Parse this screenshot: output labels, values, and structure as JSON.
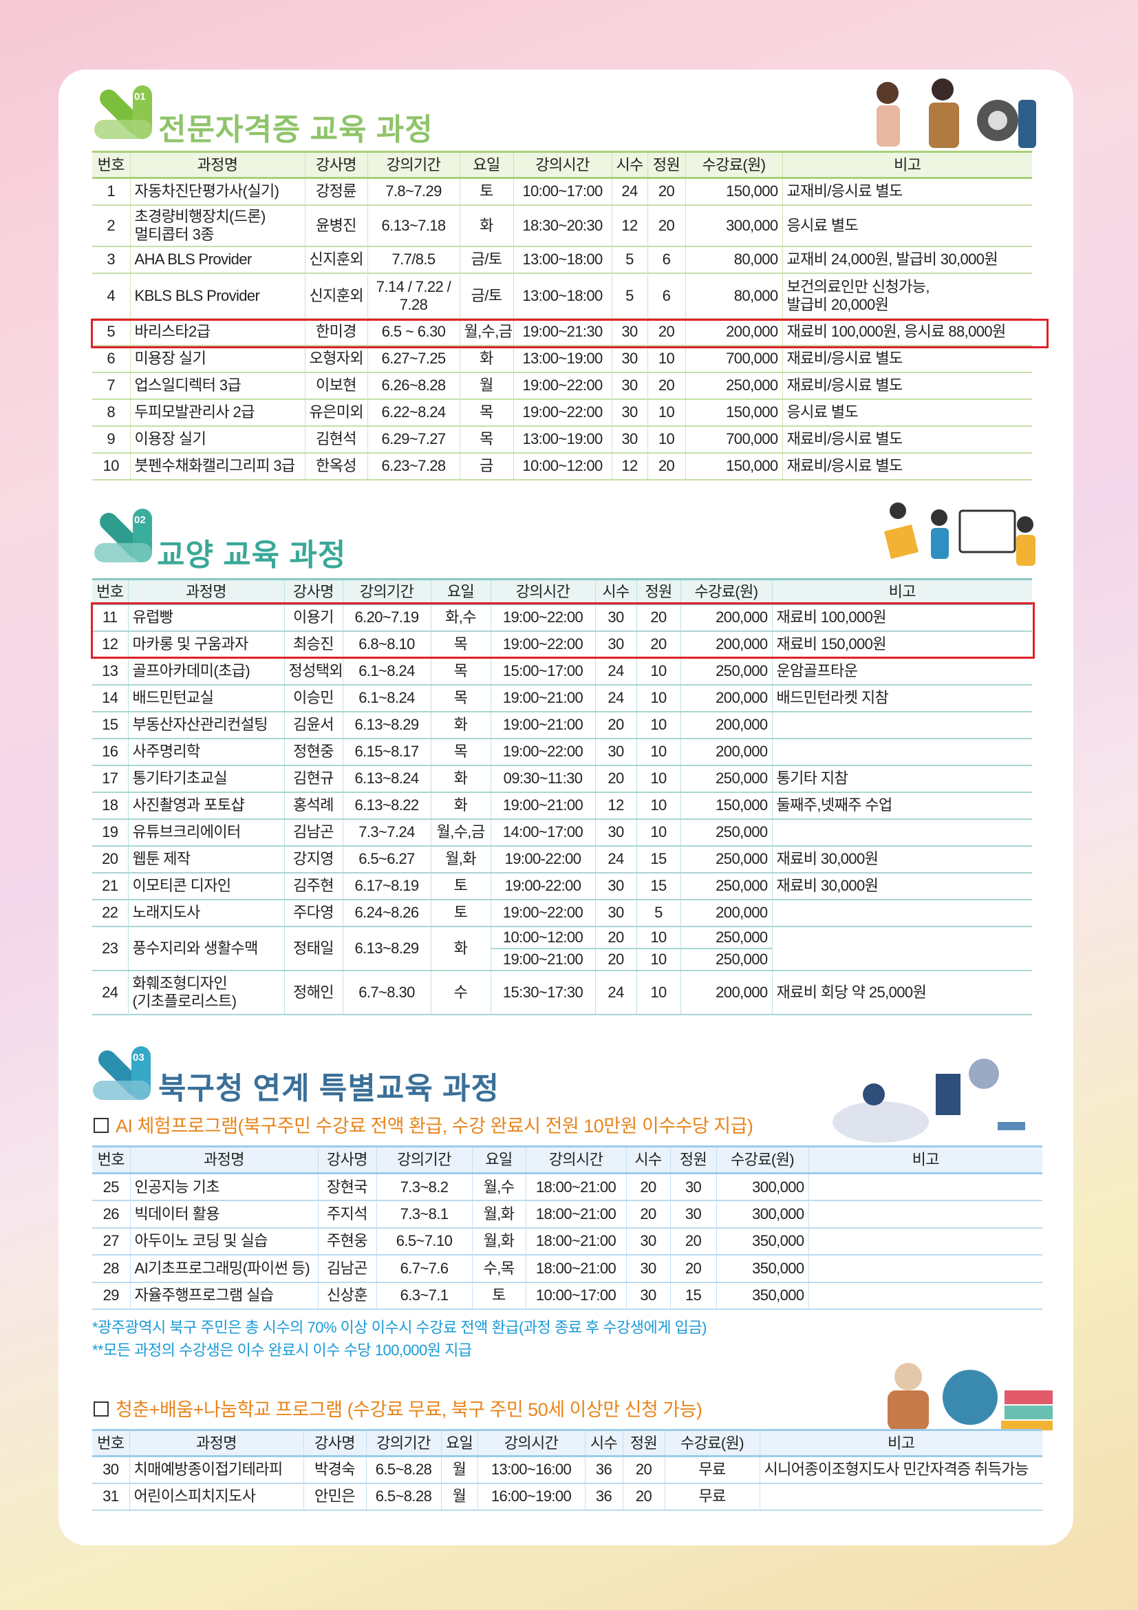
{
  "colors": {
    "sec1": "#8fc46a",
    "sec2": "#3aa898",
    "sec3": "#3a6f98",
    "sub_title": "#e8841a",
    "note": "#1a9ad6",
    "highlight": "#e0202a"
  },
  "headers": [
    "번호",
    "과정명",
    "강사명",
    "강의기간",
    "요일",
    "강의시간",
    "시수",
    "정원",
    "수강료(원)",
    "비고"
  ],
  "section1": {
    "num": "01",
    "title": "전문자격증 교육 과정",
    "rows": [
      [
        "1",
        "자동차진단평가사(실기)",
        "강정륜",
        "7.8~7.29",
        "토",
        "10:00~17:00",
        "24",
        "20",
        "150,000",
        "교재비/응시료 별도"
      ],
      [
        "2",
        "초경량비행장치(드론)\n멀티콥터 3종",
        "윤병진",
        "6.13~7.18",
        "화",
        "18:30~20:30",
        "12",
        "20",
        "300,000",
        "응시료 별도"
      ],
      [
        "3",
        "AHA BLS Provider",
        "신지훈외",
        "7.7/8.5",
        "금/토",
        "13:00~18:00",
        "5",
        "6",
        "80,000",
        "교재비 24,000원, 발급비 30,000원"
      ],
      [
        "4",
        "KBLS BLS Provider",
        "신지훈외",
        "7.14 / 7.22 /\n7.28",
        "금/토",
        "13:00~18:00",
        "5",
        "6",
        "80,000",
        "보건의료인만 신청가능,\n발급비 20,000원"
      ],
      [
        "5",
        "바리스타2급",
        "한미경",
        "6.5 ~ 6.30",
        "월,수,금",
        "19:00~21:30",
        "30",
        "20",
        "200,000",
        "재료비 100,000원, 응시료 88,000원"
      ],
      [
        "6",
        "미용장 실기",
        "오형자외",
        "6.27~7.25",
        "화",
        "13:00~19:00",
        "30",
        "10",
        "700,000",
        "재료비/응시료 별도"
      ],
      [
        "7",
        "업스일디렉터 3급",
        "이보현",
        "6.26~8.28",
        "월",
        "19:00~22:00",
        "30",
        "20",
        "250,000",
        "재료비/응시료 별도"
      ],
      [
        "8",
        "두피모발관리사 2급",
        "유은미외",
        "6.22~8.24",
        "목",
        "19:00~22:00",
        "30",
        "10",
        "150,000",
        "응시료 별도"
      ],
      [
        "9",
        "이용장 실기",
        "김현석",
        "6.29~7.27",
        "목",
        "13:00~19:00",
        "30",
        "10",
        "700,000",
        "재료비/응시료 별도"
      ],
      [
        "10",
        "붓펜수채화캘리그리피 3급",
        "한옥성",
        "6.23~7.28",
        "금",
        "10:00~12:00",
        "12",
        "20",
        "150,000",
        "재료비/응시료 별도"
      ]
    ]
  },
  "section2": {
    "num": "02",
    "title": "교양 교육 과정",
    "rows": [
      [
        "11",
        "유럽빵",
        "이용기",
        "6.20~7.19",
        "화,수",
        "19:00~22:00",
        "30",
        "20",
        "200,000",
        "재료비 100,000원"
      ],
      [
        "12",
        "마카롱 및 구움과자",
        "최승진",
        "6.8~8.10",
        "목",
        "19:00~22:00",
        "30",
        "20",
        "200,000",
        "재료비 150,000원"
      ],
      [
        "13",
        "골프아카데미(초급)",
        "정성택외",
        "6.1~8.24",
        "목",
        "15:00~17:00",
        "24",
        "10",
        "250,000",
        "운암골프타운"
      ],
      [
        "14",
        "배드민턴교실",
        "이승민",
        "6.1~8.24",
        "목",
        "19:00~21:00",
        "24",
        "10",
        "200,000",
        "배드민턴라켓 지참"
      ],
      [
        "15",
        "부동산자산관리컨설팅",
        "김윤서",
        "6.13~8.29",
        "화",
        "19:00~21:00",
        "20",
        "10",
        "200,000",
        ""
      ],
      [
        "16",
        "사주명리학",
        "정현중",
        "6.15~8.17",
        "목",
        "19:00~22:00",
        "30",
        "10",
        "200,000",
        ""
      ],
      [
        "17",
        "통기타기초교실",
        "김현규",
        "6.13~8.24",
        "화",
        "09:30~11:30",
        "20",
        "10",
        "250,000",
        "통기타 지참"
      ],
      [
        "18",
        "사진촬영과 포토샵",
        "홍석례",
        "6.13~8.22",
        "화",
        "19:00~21:00",
        "12",
        "10",
        "150,000",
        "둘째주,넷째주 수업"
      ],
      [
        "19",
        "유튜브크리에이터",
        "김남곤",
        "7.3~7.24",
        "월,수,금",
        "14:00~17:00",
        "30",
        "10",
        "250,000",
        ""
      ],
      [
        "20",
        "웹툰 제작",
        "강지영",
        "6.5~6.27",
        "월,화",
        "19:00-22:00",
        "24",
        "15",
        "250,000",
        "재료비 30,000원"
      ],
      [
        "21",
        "이모티콘 디자인",
        "김주현",
        "6.17~8.19",
        "토",
        "19:00-22:00",
        "30",
        "15",
        "250,000",
        "재료비 30,000원"
      ],
      [
        "22",
        "노래지도사",
        "주다영",
        "6.24~8.26",
        "토",
        "19:00~22:00",
        "30",
        "5",
        "200,000",
        ""
      ],
      [
        "23",
        "풍수지리와 생활수맥",
        "정태일",
        "6.13~8.29",
        "화",
        [
          "10:00~12:00",
          "19:00~21:00"
        ],
        [
          "20",
          "20"
        ],
        [
          "10",
          "10"
        ],
        [
          "250,000",
          "250,000"
        ],
        ""
      ],
      [
        "24",
        "화훼조형디자인\n(기초플로리스트)",
        "정해인",
        "6.7~8.30",
        "수",
        "15:30~17:30",
        "24",
        "10",
        "200,000",
        "재료비 회당 약 25,000원"
      ]
    ]
  },
  "section3": {
    "num": "03",
    "title": "북구청 연계 특별교육 과정",
    "ai": {
      "title": "AI 체험프로그램(북구주민 수강료 전액 환급, 수강 완료시 전원 10만원 이수수당 지급)",
      "rows": [
        [
          "25",
          "인공지능 기초",
          "장현국",
          "7.3~8.2",
          "월,수",
          "18:00~21:00",
          "20",
          "30",
          "300,000",
          ""
        ],
        [
          "26",
          "빅데이터 활용",
          "주지석",
          "7.3~8.1",
          "월,화",
          "18:00~21:00",
          "20",
          "30",
          "300,000",
          ""
        ],
        [
          "27",
          "아두이노 코딩 및 실습",
          "주현웅",
          "6.5~7.10",
          "월,화",
          "18:00~21:00",
          "30",
          "20",
          "350,000",
          ""
        ],
        [
          "28",
          "AI기초프로그래밍(파이썬 등)",
          "김남곤",
          "6.7~7.6",
          "수,목",
          "18:00~21:00",
          "30",
          "20",
          "350,000",
          ""
        ],
        [
          "29",
          "자율주행프로그램 실습",
          "신상훈",
          "6.3~7.1",
          "토",
          "10:00~17:00",
          "30",
          "15",
          "350,000",
          ""
        ]
      ],
      "notes": [
        "*광주광역시 북구 주민은 총 시수의 70% 이상 이수시 수강료 전액 환급(과정 종료 후 수강생에게 입금)",
        "**모든 과정의 수강생은 이수 완료시 이수 수당 100,000원 지급"
      ]
    },
    "school": {
      "title": "청춘+배움+나눔학교 프로그램 (수강료 무료, 북구 주민 50세 이상만 신청 가능)",
      "rows": [
        [
          "30",
          "치매예방종이접기테라피",
          "박경숙",
          "6.5~8.28",
          "월",
          "13:00~16:00",
          "36",
          "20",
          "무료",
          "시니어종이조형지도사 민간자격증 취득가능"
        ],
        [
          "31",
          "어린이스피치지도사",
          "안민은",
          "6.5~8.28",
          "월",
          "16:00~19:00",
          "36",
          "20",
          "무료",
          ""
        ]
      ]
    }
  }
}
